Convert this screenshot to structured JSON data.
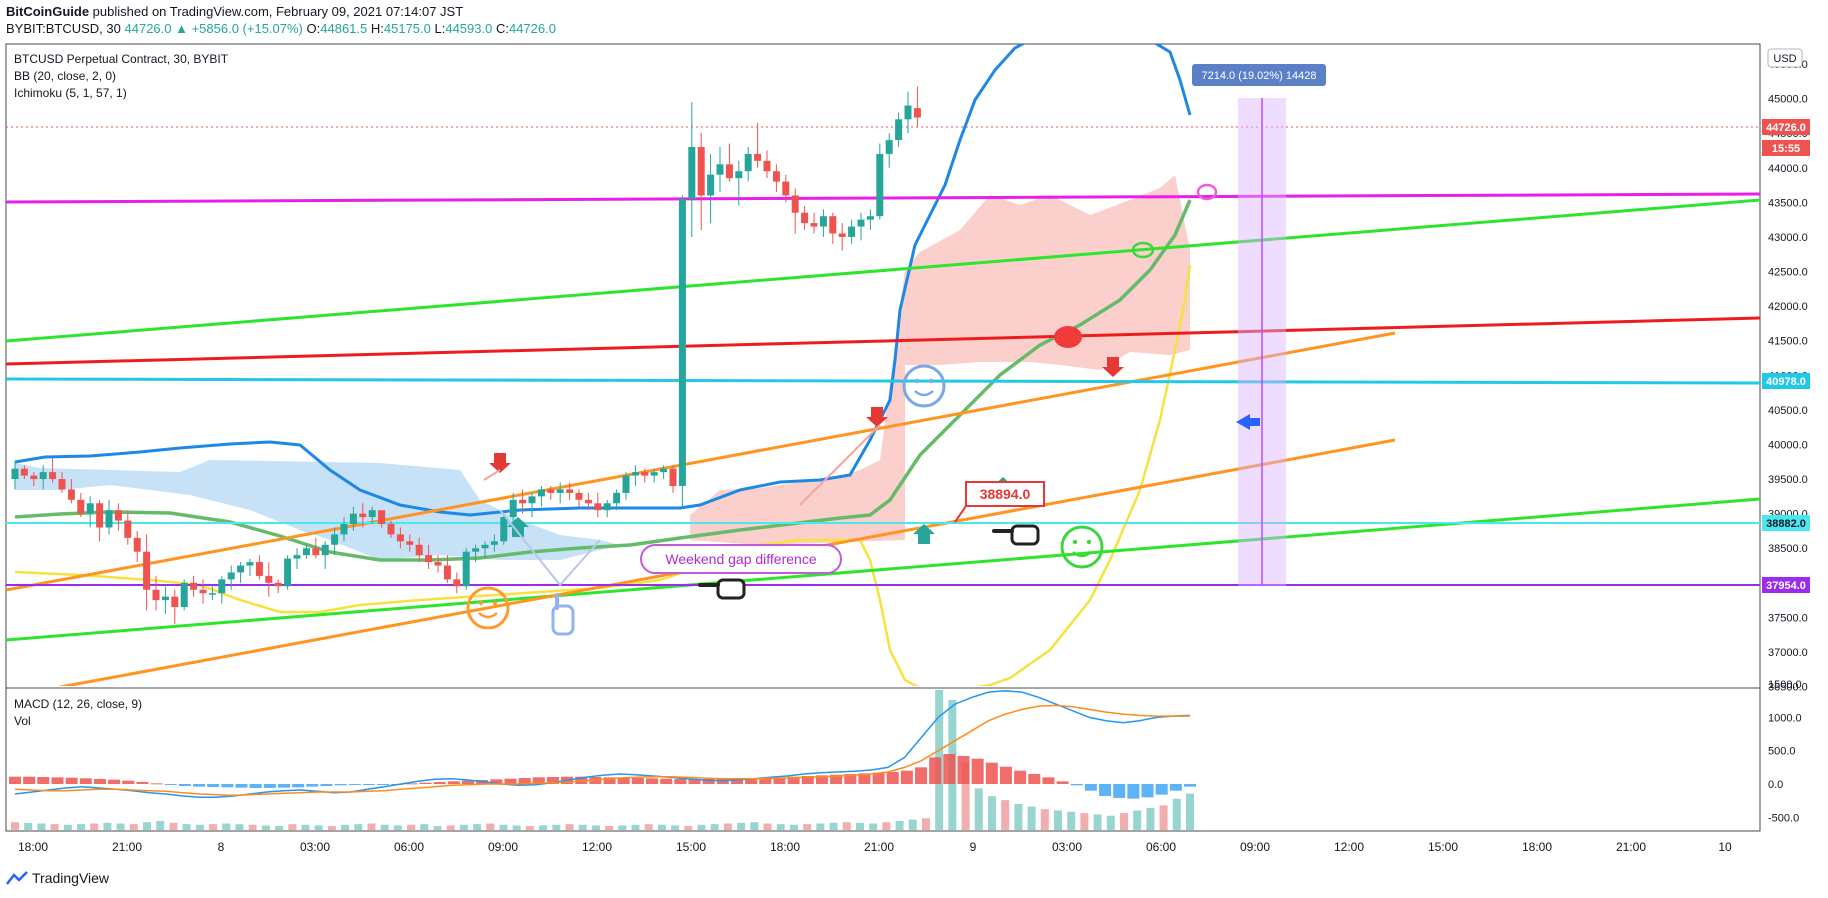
{
  "header": {
    "publisher": "BitCoinGuide",
    "published_text": "published on TradingView.com, February 09, 2021 07:14:07 JST",
    "symbol": "BYBIT:BTCUSD, 30",
    "change": "44726.0 ▲ +5856.0 (+15.07%)",
    "o_label": "O:",
    "o": "44861.5",
    "h_label": "H:",
    "h": "45175.0",
    "l_label": "L:",
    "l": "44593.0",
    "c_label": "C:",
    "c": "44726.0"
  },
  "legend": {
    "title": "BTCUSD Perpetual Contract, 30, BYBIT",
    "bb": "BB (20, close, 2, 0)",
    "ichimoku": "Ichimoku (5, 1, 57, 1)",
    "macd": "MACD (12, 26, close, 9)",
    "vol": "Vol"
  },
  "currency": "USD",
  "footer_brand": "TradingView",
  "colors": {
    "up": "#26a69a",
    "down": "#ef5350",
    "bb": "#1e88e5",
    "ichimoku_base": "#66bb6a",
    "magenta": "#e91ee9",
    "green": "#2ee52e",
    "red": "#ee1c1c",
    "orange": "#ff9420",
    "cyan": "#22c8e8",
    "yellow": "#f5e23c",
    "purple": "#9a2cf0"
  },
  "annotations": {
    "weekend_gap": "Weekend gap difference",
    "price_label": "38894.0",
    "measure": "7214.0 (19.02%) 14428"
  },
  "chart_data": [
    {
      "type": "candlestick",
      "title": "BTCUSD Perpetual Contract, 30, BYBIT",
      "ylim": [
        36500,
        45800
      ],
      "y_ticks": [
        "36500.0",
        "37000.0",
        "37500.0",
        "38000.0",
        "38500.0",
        "39000.0",
        "39500.0",
        "40000.0",
        "40500.0",
        "41000.0",
        "41500.0",
        "42000.0",
        "42500.0",
        "43000.0",
        "43500.0",
        "44000.0",
        "44500.0",
        "45000.0",
        "45500.0"
      ],
      "x_ticks": [
        "18:00",
        "21:00",
        "8",
        "03:00",
        "06:00",
        "09:00",
        "12:00",
        "15:00",
        "18:00",
        "21:00",
        "9",
        "03:00",
        "06:00",
        "09:00",
        "12:00",
        "15:00",
        "18:00",
        "21:00",
        "10"
      ],
      "price_labels": [
        {
          "value": "44726.0",
          "color": "#ef5350"
        },
        {
          "value": "15:55",
          "color": "#ef5350"
        },
        {
          "value": "40978.0",
          "color": "#22c8e8"
        },
        {
          "value": "38882.0",
          "color": "#48e8f0"
        },
        {
          "value": "37954.0",
          "color": "#9a2cf0"
        }
      ],
      "ohlc": [
        [
          39500,
          39750,
          39350,
          39650
        ],
        [
          39650,
          39700,
          39500,
          39550
        ],
        [
          39550,
          39600,
          39400,
          39500
        ],
        [
          39500,
          39700,
          39350,
          39600
        ],
        [
          39600,
          39800,
          39450,
          39500
        ],
        [
          39500,
          39600,
          39300,
          39350
        ],
        [
          39350,
          39500,
          39150,
          39200
        ],
        [
          39200,
          39300,
          38950,
          39000
        ],
        [
          39000,
          39250,
          38800,
          39150
        ],
        [
          39150,
          39200,
          38600,
          38800
        ],
        [
          38800,
          39200,
          38700,
          39050
        ],
        [
          39050,
          39150,
          38750,
          38900
        ],
        [
          38900,
          39050,
          38550,
          38650
        ],
        [
          38650,
          38750,
          38300,
          38450
        ],
        [
          38450,
          38700,
          37600,
          37900
        ],
        [
          37900,
          38100,
          37600,
          37750
        ],
        [
          37750,
          37950,
          37550,
          37800
        ],
        [
          37800,
          37900,
          37400,
          37650
        ],
        [
          37650,
          38050,
          37600,
          38000
        ],
        [
          38000,
          38100,
          37800,
          37900
        ],
        [
          37900,
          38050,
          37700,
          37850
        ],
        [
          37850,
          37950,
          37750,
          37850
        ],
        [
          37850,
          38100,
          37700,
          38050
        ],
        [
          38050,
          38250,
          37900,
          38150
        ],
        [
          38150,
          38300,
          38000,
          38250
        ],
        [
          38250,
          38350,
          38100,
          38300
        ],
        [
          38300,
          38400,
          38050,
          38100
        ],
        [
          38100,
          38300,
          37800,
          38000
        ],
        [
          38000,
          38050,
          37850,
          37950
        ],
        [
          37950,
          38400,
          37900,
          38350
        ],
        [
          38350,
          38500,
          38200,
          38400
        ],
        [
          38400,
          38550,
          38350,
          38500
        ],
        [
          38500,
          38650,
          38350,
          38400
        ],
        [
          38400,
          38600,
          38200,
          38550
        ],
        [
          38550,
          38800,
          38400,
          38700
        ],
        [
          38700,
          38950,
          38600,
          38850
        ],
        [
          38850,
          39100,
          38750,
          39000
        ],
        [
          39000,
          39150,
          38800,
          38950
        ],
        [
          38950,
          39100,
          38850,
          39050
        ],
        [
          39050,
          39050,
          38800,
          38850
        ],
        [
          38850,
          38900,
          38650,
          38700
        ],
        [
          38700,
          38800,
          38500,
          38600
        ],
        [
          38600,
          38700,
          38450,
          38550
        ],
        [
          38550,
          38650,
          38300,
          38400
        ],
        [
          38400,
          38550,
          38200,
          38300
        ],
        [
          38300,
          38400,
          38150,
          38250
        ],
        [
          38250,
          38400,
          38000,
          38050
        ],
        [
          38050,
          38150,
          37850,
          37950
        ],
        [
          37950,
          38500,
          37900,
          38450
        ],
        [
          38450,
          38550,
          38300,
          38500
        ],
        [
          38500,
          38600,
          38350,
          38550
        ],
        [
          38550,
          38700,
          38450,
          38600
        ],
        [
          38600,
          39000,
          38550,
          38950
        ],
        [
          38950,
          39300,
          38800,
          39200
        ],
        [
          39200,
          39350,
          39000,
          39150
        ],
        [
          39150,
          39300,
          38950,
          39250
        ],
        [
          39250,
          39400,
          39100,
          39350
        ],
        [
          39350,
          39400,
          39200,
          39300
        ],
        [
          39300,
          39450,
          39150,
          39350
        ],
        [
          39350,
          39450,
          39200,
          39300
        ],
        [
          39300,
          39350,
          39100,
          39200
        ],
        [
          39200,
          39300,
          39050,
          39150
        ],
        [
          39150,
          39300,
          38950,
          39050
        ],
        [
          39050,
          39200,
          38950,
          39150
        ],
        [
          39150,
          39350,
          39050,
          39300
        ],
        [
          39300,
          39600,
          39200,
          39550
        ],
        [
          39550,
          39700,
          39400,
          39600
        ],
        [
          39600,
          39650,
          39450,
          39550
        ],
        [
          39550,
          39650,
          39450,
          39600
        ],
        [
          39600,
          39700,
          39500,
          39650
        ],
        [
          39650,
          39700,
          39300,
          39400
        ],
        [
          39400,
          43600,
          39100,
          43550
        ],
        [
          43550,
          44950,
          43000,
          44300
        ],
        [
          44300,
          44500,
          43100,
          43600
        ],
        [
          43600,
          44200,
          43200,
          43900
        ],
        [
          43900,
          44300,
          43650,
          44050
        ],
        [
          44050,
          44350,
          43800,
          43850
        ],
        [
          43850,
          44100,
          43450,
          43950
        ],
        [
          43950,
          44300,
          43800,
          44200
        ],
        [
          44200,
          44650,
          44000,
          44100
        ],
        [
          44100,
          44250,
          43850,
          43950
        ],
        [
          43950,
          44050,
          43650,
          43800
        ],
        [
          43800,
          43900,
          43500,
          43600
        ],
        [
          43600,
          43700,
          43050,
          43350
        ],
        [
          43350,
          43450,
          43100,
          43200
        ],
        [
          43200,
          43350,
          43050,
          43150
        ],
        [
          43150,
          43400,
          43000,
          43300
        ],
        [
          43300,
          43350,
          42900,
          43050
        ],
        [
          43050,
          43200,
          42800,
          43000
        ],
        [
          43000,
          43250,
          42900,
          43150
        ],
        [
          43150,
          43350,
          42950,
          43250
        ],
        [
          43250,
          43400,
          43100,
          43300
        ],
        [
          43300,
          44350,
          43250,
          44200
        ],
        [
          44200,
          44500,
          44000,
          44400
        ],
        [
          44400,
          44800,
          44300,
          44700
        ],
        [
          44700,
          45100,
          44500,
          44900
        ],
        [
          44862,
          45175,
          44593,
          44726
        ]
      ]
    },
    {
      "type": "bar",
      "title": "MACD (12, 26, close, 9)",
      "ylim": [
        -500,
        1500
      ],
      "y_ticks": [
        "-500.0",
        "0.0",
        "500.0",
        "1000.0",
        "1500.0"
      ],
      "series": [
        {
          "name": "MACD",
          "values": [
            -150,
            -120,
            -90,
            -60,
            -40,
            -60,
            -80,
            -100,
            -130,
            -150,
            -180,
            -200,
            -200,
            -180,
            -150,
            -120,
            -100,
            -90,
            -110,
            -130,
            -120,
            -80,
            -40,
            0,
            40,
            70,
            80,
            60,
            30,
            0,
            -20,
            -10,
            20,
            60,
            100,
            130,
            150,
            140,
            120,
            100,
            80,
            60,
            50,
            60,
            80,
            100,
            120,
            150,
            170,
            180,
            190,
            210,
            250,
            400,
            700,
            1000,
            1200,
            1300,
            1380,
            1400,
            1380,
            1300,
            1200,
            1100,
            1000,
            950,
            920,
            950,
            1000,
            1020,
            1030
          ]
        },
        {
          "name": "Signal",
          "values": [
            -80,
            -90,
            -100,
            -100,
            -90,
            -80,
            -80,
            -90,
            -100,
            -110,
            -130,
            -150,
            -160,
            -170,
            -160,
            -150,
            -140,
            -130,
            -120,
            -120,
            -120,
            -110,
            -100,
            -80,
            -60,
            -40,
            -20,
            -10,
            0,
            0,
            0,
            10,
            20,
            30,
            50,
            70,
            90,
            100,
            110,
            110,
            100,
            90,
            80,
            80,
            80,
            85,
            90,
            100,
            110,
            120,
            130,
            150,
            180,
            250,
            350,
            500,
            650,
            800,
            950,
            1050,
            1120,
            1170,
            1180,
            1160,
            1120,
            1080,
            1050,
            1030,
            1020,
            1020,
            1020
          ]
        },
        {
          "name": "Histogram",
          "values": [
            110,
            110,
            105,
            100,
            95,
            85,
            75,
            65,
            50,
            30,
            10,
            -10,
            -30,
            -40,
            -45,
            -50,
            -55,
            -60,
            -60,
            -55,
            -50,
            -40,
            -30,
            -20,
            -15,
            -10,
            -5,
            0,
            10,
            20,
            30,
            40,
            50,
            60,
            70,
            80,
            90,
            100,
            105,
            110,
            110,
            105,
            100,
            95,
            90,
            85,
            80,
            75,
            70,
            75,
            80,
            85,
            90,
            95,
            100,
            110,
            120,
            130,
            140,
            150,
            160,
            170,
            180,
            200,
            250,
            400,
            450,
            420,
            380,
            320,
            260,
            200,
            150,
            100,
            40,
            -20,
            -100,
            -180,
            -210,
            -220,
            -200,
            -160,
            -100,
            -40
          ]
        },
        {
          "name": "Volume",
          "values": [
            60,
            55,
            50,
            45,
            40,
            45,
            50,
            55,
            50,
            45,
            60,
            70,
            55,
            45,
            40,
            45,
            50,
            45,
            40,
            35,
            30,
            45,
            40,
            35,
            30,
            40,
            45,
            50,
            40,
            35,
            40,
            45,
            30,
            35,
            40,
            45,
            50,
            40,
            35,
            30,
            35,
            40,
            45,
            40,
            35,
            30,
            35,
            40,
            45,
            40,
            35,
            30,
            40,
            45,
            50,
            55,
            60,
            50,
            45,
            40,
            45,
            50,
            55,
            60,
            55,
            50,
            60,
            70,
            80,
            90,
            1450,
            1000,
            520,
            320,
            260,
            230,
            200,
            180,
            160,
            150,
            140,
            130,
            120,
            110,
            130,
            150,
            170,
            190,
            240,
            280
          ]
        }
      ]
    }
  ]
}
